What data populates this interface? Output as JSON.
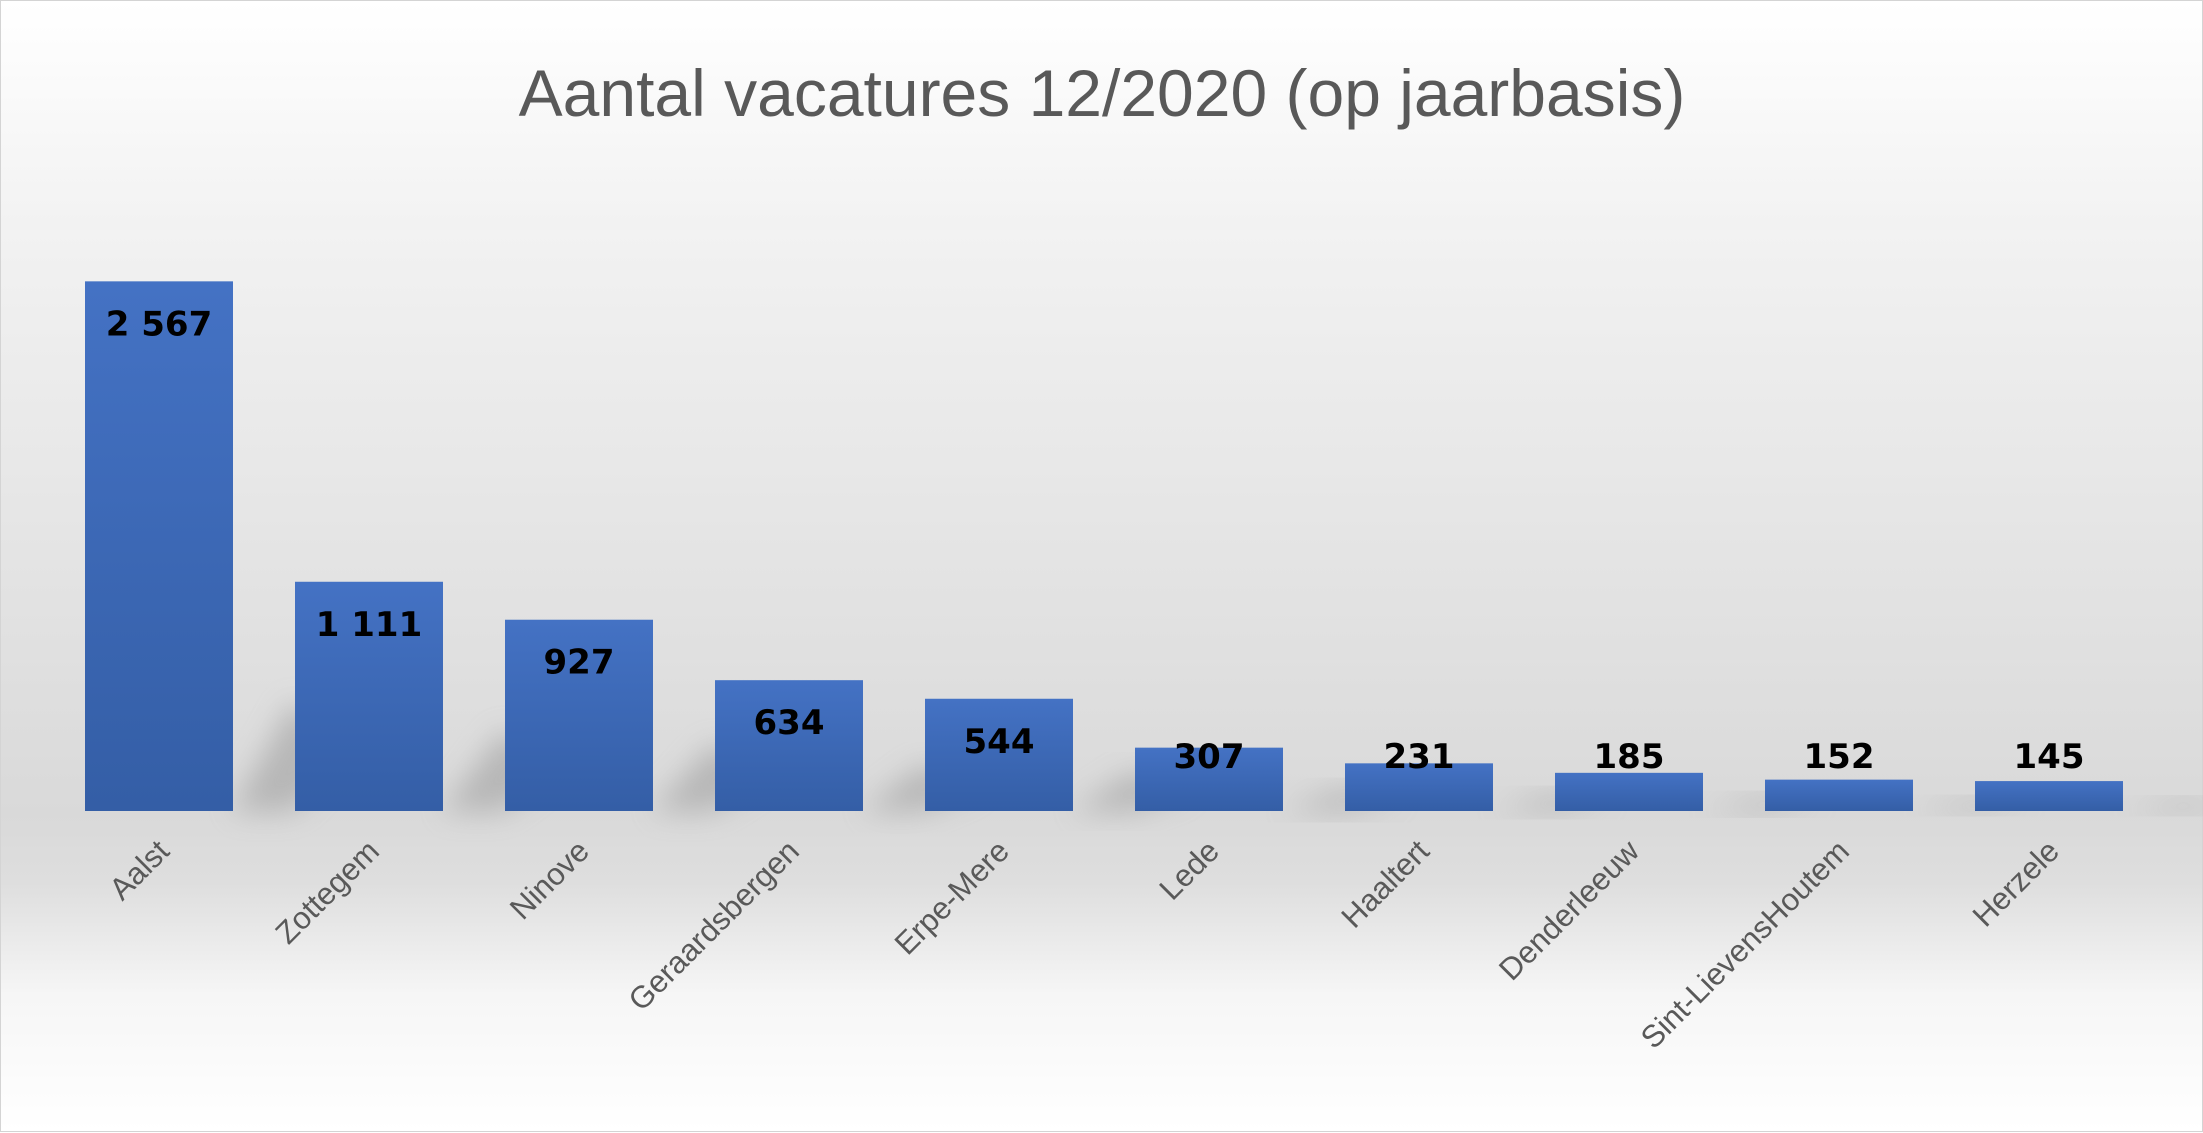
{
  "chart_data": {
    "type": "bar",
    "title": "Aantal vacatures 12/2020 (op jaarbasis)",
    "categories": [
      "Aalst",
      "Zottegem",
      "Ninove",
      "Geraardsbergen",
      "Erpe-Mere",
      "Lede",
      "Haaltert",
      "Denderleeuw",
      "Sint-LievensHoutem",
      "Herzele"
    ],
    "values": [
      2567,
      1111,
      927,
      634,
      544,
      307,
      231,
      185,
      152,
      145
    ],
    "value_labels": [
      "2 567",
      "1 111",
      "927",
      "634",
      "544",
      "307",
      "231",
      "185",
      "152",
      "145"
    ],
    "xlabel": "",
    "ylabel": "",
    "ylim": [
      0,
      3000
    ],
    "grid": false,
    "legend": "none",
    "bar_color": "#4472c4"
  }
}
